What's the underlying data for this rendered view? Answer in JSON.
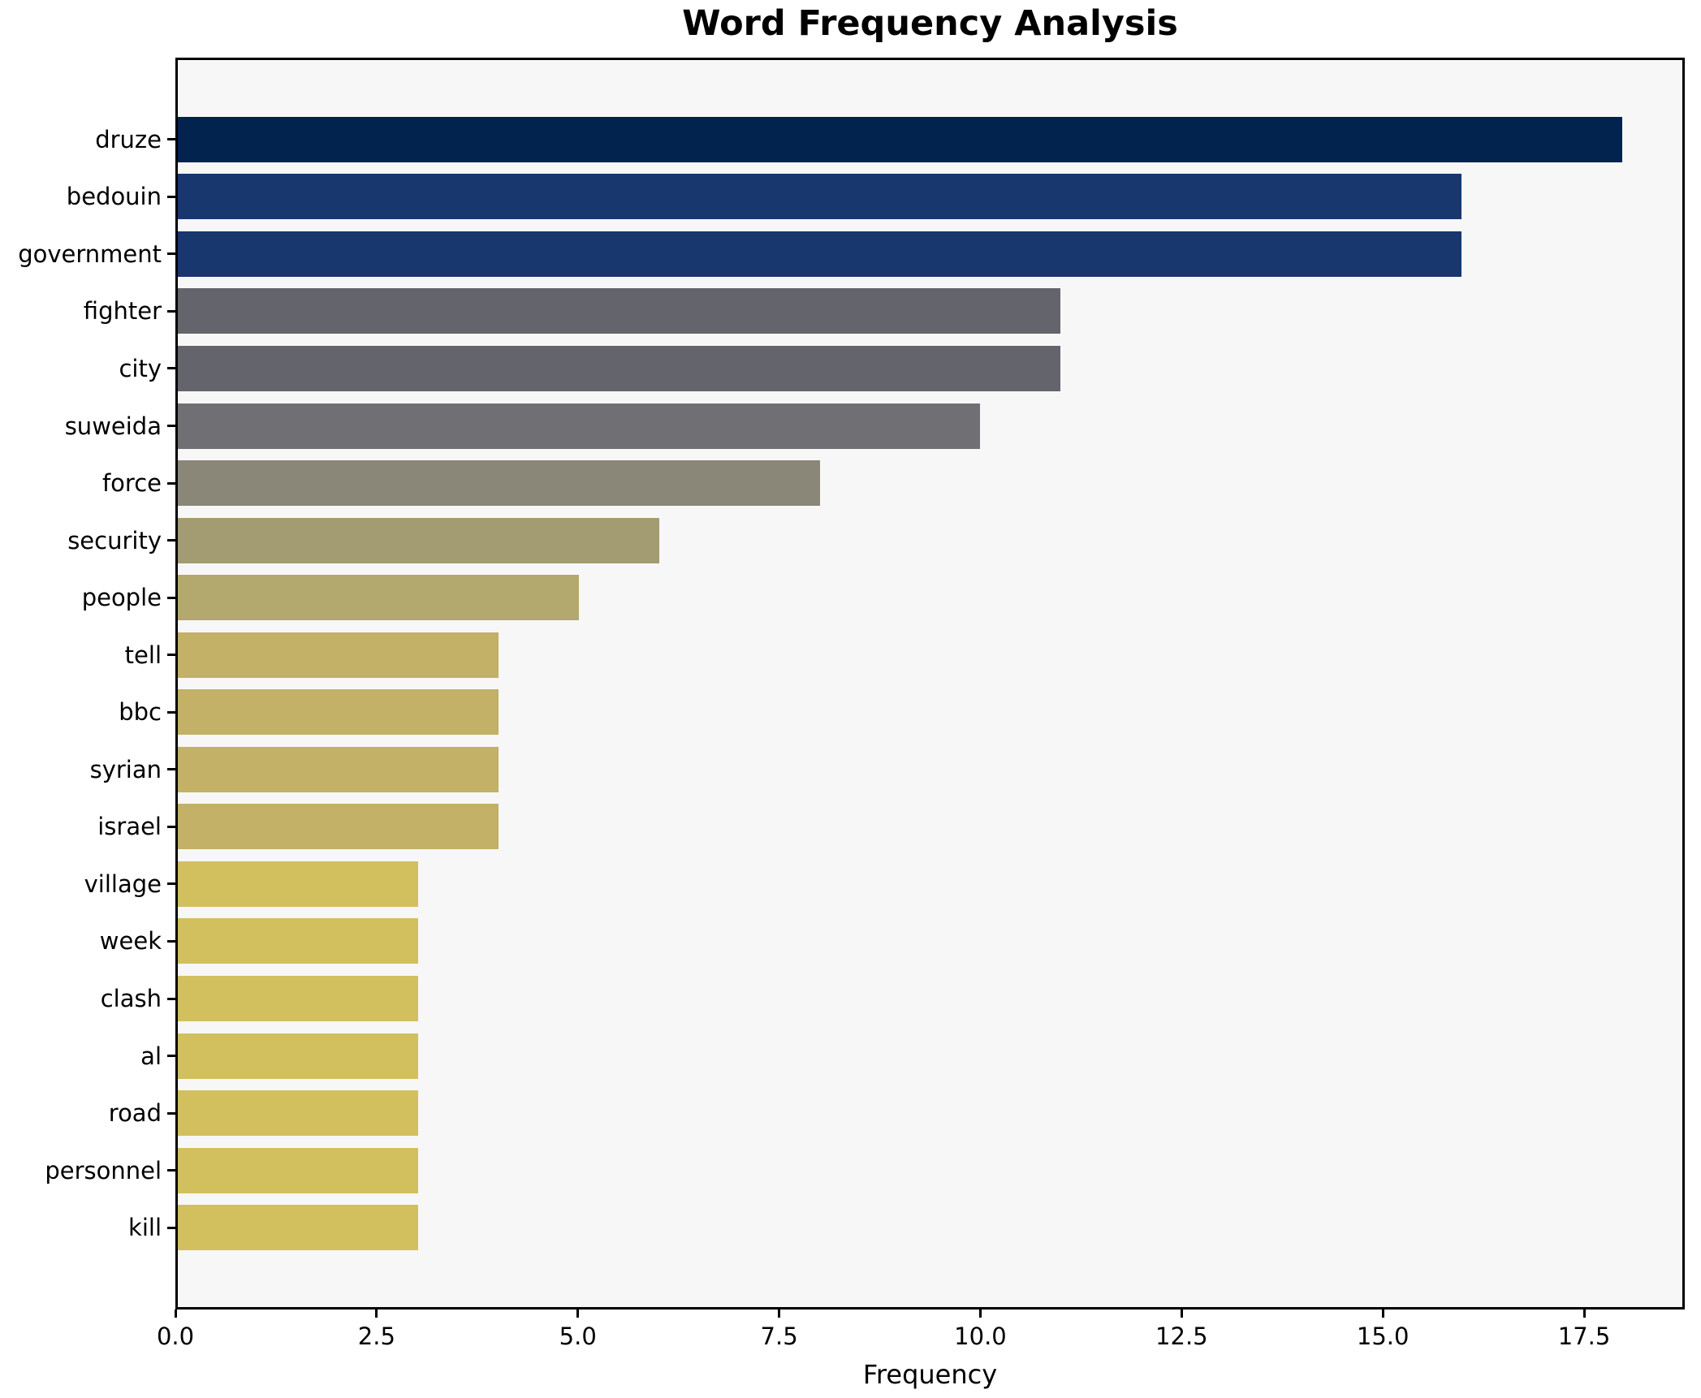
{
  "title": "Word Frequency Analysis",
  "chart_data": {
    "type": "bar",
    "orientation": "horizontal",
    "title": "Word Frequency Analysis",
    "xlabel": "Frequency",
    "ylabel": "",
    "categories": [
      "druze",
      "bedouin",
      "government",
      "fighter",
      "city",
      "suweida",
      "force",
      "security",
      "people",
      "tell",
      "bbc",
      "syrian",
      "israel",
      "village",
      "week",
      "clash",
      "al",
      "road",
      "personnel",
      "kill"
    ],
    "values": [
      18,
      16,
      16,
      11,
      11,
      10,
      8,
      6,
      5,
      4,
      4,
      4,
      4,
      3,
      3,
      3,
      3,
      3,
      3,
      3
    ],
    "bar_colors": [
      "#02234e",
      "#17376e",
      "#17376e",
      "#64646d",
      "#64646d",
      "#707074",
      "#8a8778",
      "#a39c72",
      "#b3a96e",
      "#c2b166",
      "#c2b166",
      "#c2b166",
      "#c2b166",
      "#d2c05e",
      "#d2c05e",
      "#d2c05e",
      "#d2c05e",
      "#d2c05e",
      "#d2c05e",
      "#d2c05e"
    ],
    "xlim": [
      0,
      18.75
    ],
    "xticks": [
      0.0,
      2.5,
      5.0,
      7.5,
      10.0,
      12.5,
      15.0,
      17.5
    ],
    "grid": false,
    "legend": false,
    "plot_background": "#f7f7f7",
    "figure_background": "#ffffff",
    "spine_color": "#000000"
  }
}
